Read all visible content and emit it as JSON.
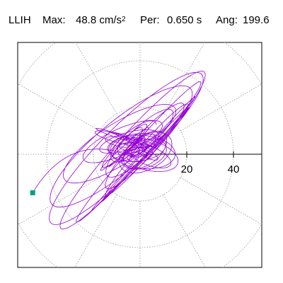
{
  "header": {
    "station": "LLIH",
    "max_label": "Max:",
    "max_value": "48.8",
    "max_unit": "cm/s",
    "max_unit_exp": "2",
    "per_label": "Per:",
    "per_value": "0.650 s",
    "ang_label": "Ang:",
    "ang_value": "199.6"
  },
  "chart_data": {
    "type": "polar-orbit",
    "title": "",
    "radial_ticks": [
      20,
      40
    ],
    "rings": [
      20,
      40,
      60
    ],
    "spokes_deg": [
      0,
      30,
      60,
      90,
      120,
      150,
      180,
      210,
      240,
      270,
      300,
      330
    ],
    "grid": true,
    "trace_color": "#9400d3",
    "marker_color": "#00a080",
    "max_amplitude": 48.8,
    "max_direction_deg": 199.6,
    "end_point": {
      "x": -46.0,
      "y": -16.5
    }
  }
}
